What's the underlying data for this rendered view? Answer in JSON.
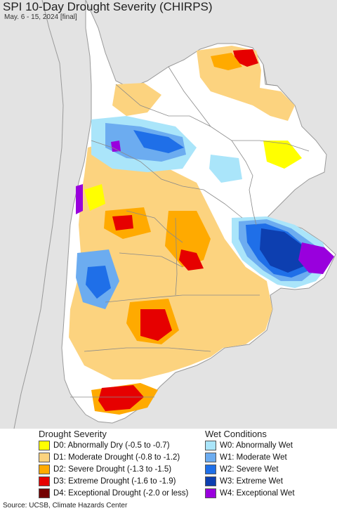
{
  "header": {
    "title": "SPI 10-Day Drought Severity (CHIRPS)",
    "subtitle": "May. 6 - 15, 2024 [final]"
  },
  "legend": {
    "drought_title": "Drought Severity",
    "wet_title": "Wet Conditions",
    "drought": [
      {
        "label": "D0: Abnormally Dry (-0.5 to -0.7)",
        "color": "#ffff00"
      },
      {
        "label": "D1: Moderate Drought (-0.8 to -1.2)",
        "color": "#fcd37f"
      },
      {
        "label": "D2: Severe Drought (-1.3 to -1.5)",
        "color": "#ffaa00"
      },
      {
        "label": "D3: Extreme Drought (-1.6 to -1.9)",
        "color": "#e60000"
      },
      {
        "label": "D4: Exceptional Drought (-2.0 or less)",
        "color": "#730000"
      }
    ],
    "wet": [
      {
        "label": "W0: Abnormally Wet",
        "color": "#aae5fa"
      },
      {
        "label": "W1: Moderate Wet",
        "color": "#6cacf0"
      },
      {
        "label": "W2: Severe Wet",
        "color": "#1f6fe8"
      },
      {
        "label": "W3: Extreme Wet",
        "color": "#0d3fb0"
      },
      {
        "label": "W4: Exceptional Wet",
        "color": "#9900dd"
      }
    ]
  },
  "footer": {
    "source": "Source: UCSB, Climate Hazards Center"
  },
  "map_colors": {
    "background": "#e3e3e3",
    "land": "#ffffff",
    "border": "#8a8a8a"
  }
}
